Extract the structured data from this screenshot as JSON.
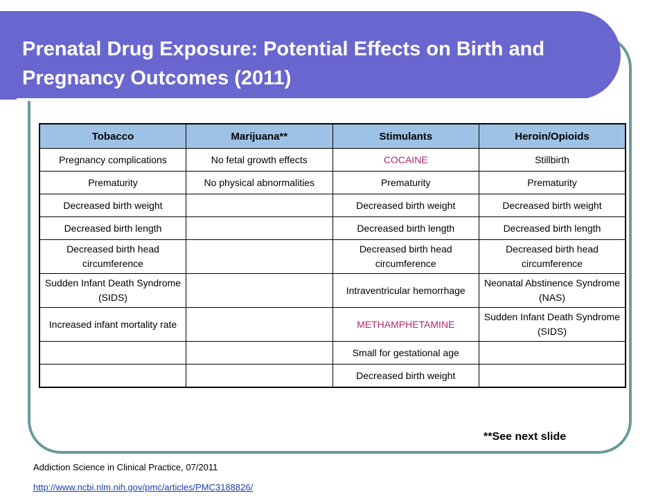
{
  "title": "Prenatal Drug Exposure: Potential Effects on Birth and Pregnancy Outcomes (2011)",
  "table": {
    "headers": [
      "Tobacco",
      "Marijuana**",
      "Stimulants",
      "Heroin/Opioids"
    ],
    "rows": [
      [
        "Pregnancy complications",
        "No fetal growth effects",
        "COCAINE",
        "Stillbirth"
      ],
      [
        "Prematurity",
        "No physical abnormalities",
        "Prematurity",
        "Prematurity"
      ],
      [
        "Decreased birth weight",
        "",
        "Decreased birth weight",
        "Decreased birth weight"
      ],
      [
        "Decreased birth length",
        "",
        "Decreased birth length",
        "Decreased birth length"
      ],
      [
        "Decreased birth head circumference",
        "",
        "Decreased birth head circumference",
        "Decreased birth head circumference"
      ],
      [
        "Sudden Infant Death Syndrome (SIDS)",
        "",
        "Intraventricular hemorrhage",
        "Neonatal Abstinence Syndrome (NAS)"
      ],
      [
        "Increased infant mortality rate",
        "",
        "METHAMPHETAMINE",
        "Sudden Infant Death Syndrome (SIDS)"
      ],
      [
        "",
        "",
        "Small for gestational age",
        ""
      ],
      [
        "",
        "",
        "Decreased birth weight",
        ""
      ]
    ]
  },
  "note": "**See next slide",
  "citation": "Addiction Science in Clinical Practice, 07/2011",
  "link": "http://www.ncbi.nlm.nih.gov/pmc/articles/PMC3188826/",
  "colors": {
    "banner": "#6a66cf",
    "frame": "#6a9a99",
    "header_fill": "#9ec2e6",
    "highlight_text": "#b2276f",
    "link": "#1a3fa8"
  }
}
